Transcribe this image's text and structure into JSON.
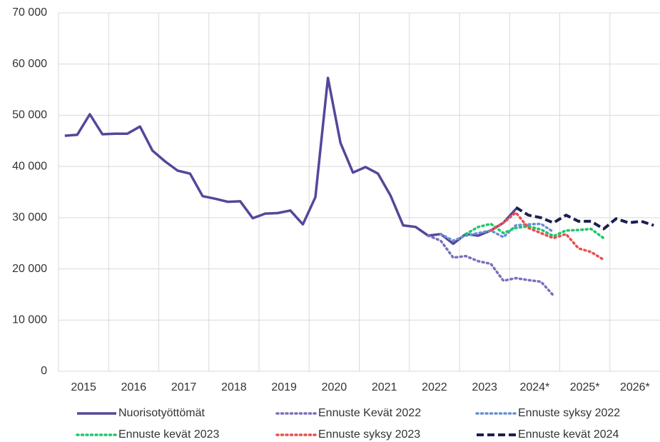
{
  "chart_data": {
    "type": "line",
    "categories": [
      null,
      "2015",
      null,
      null,
      null,
      "2016",
      null,
      null,
      null,
      "2017",
      null,
      null,
      null,
      "2018",
      null,
      null,
      null,
      "2019",
      null,
      null,
      null,
      "2020",
      null,
      null,
      null,
      "2021",
      null,
      null,
      null,
      "2022",
      null,
      null,
      null,
      "2023",
      null,
      null,
      null,
      "2024*",
      null,
      null,
      null,
      "2025*",
      null,
      null,
      null,
      "2026*",
      null,
      null
    ],
    "series": [
      {
        "name": "Nuorisotyöttömät",
        "color": "#54479a",
        "style": "solid",
        "values": [
          46000,
          46200,
          50200,
          46300,
          46400,
          46400,
          47800,
          43100,
          41000,
          39200,
          38600,
          34200,
          33700,
          33100,
          33200,
          29900,
          30800,
          30900,
          31400,
          28700,
          34000,
          57300,
          44600,
          38800,
          39900,
          38600,
          34300,
          28500,
          28200,
          26500,
          26800,
          24900,
          26800,
          26500,
          27500,
          29000,
          31700,
          null,
          null,
          null,
          null,
          null,
          null,
          null,
          null,
          null,
          null,
          null
        ]
      },
      {
        "name": "Ennuste Kevät 2022",
        "color": "#7a6fc0",
        "style": "dotted",
        "values": [
          null,
          null,
          null,
          null,
          null,
          null,
          null,
          null,
          null,
          null,
          null,
          null,
          null,
          null,
          null,
          null,
          null,
          null,
          null,
          null,
          null,
          null,
          null,
          null,
          null,
          null,
          null,
          null,
          null,
          26500,
          25500,
          22200,
          22500,
          21500,
          21000,
          17700,
          18200,
          17800,
          17500,
          14800,
          null,
          null,
          null,
          null,
          null,
          null,
          null,
          null
        ]
      },
      {
        "name": "Ennuste syksy 2022",
        "color": "#6b8fd4",
        "style": "dotted",
        "values": [
          null,
          null,
          null,
          null,
          null,
          null,
          null,
          null,
          null,
          null,
          null,
          null,
          null,
          null,
          null,
          null,
          null,
          null,
          null,
          null,
          null,
          null,
          null,
          null,
          null,
          null,
          null,
          null,
          null,
          null,
          26800,
          25500,
          26500,
          27000,
          27500,
          26200,
          28500,
          28700,
          28800,
          27200,
          null,
          null,
          null,
          null,
          null,
          null,
          null,
          null
        ]
      },
      {
        "name": "Ennuste kevät 2023",
        "color": "#1ec76a",
        "style": "dotted",
        "values": [
          null,
          null,
          null,
          null,
          null,
          null,
          null,
          null,
          null,
          null,
          null,
          null,
          null,
          null,
          null,
          null,
          null,
          null,
          null,
          null,
          null,
          null,
          null,
          null,
          null,
          null,
          null,
          null,
          null,
          null,
          null,
          null,
          26800,
          28200,
          28800,
          27000,
          28000,
          28300,
          27700,
          26400,
          27500,
          27600,
          27800,
          26000,
          null,
          null,
          null,
          null
        ]
      },
      {
        "name": "Ennuste syksy 2023",
        "color": "#e8504f",
        "style": "dotted",
        "values": [
          null,
          null,
          null,
          null,
          null,
          null,
          null,
          null,
          null,
          null,
          null,
          null,
          null,
          null,
          null,
          null,
          null,
          null,
          null,
          null,
          null,
          null,
          null,
          null,
          null,
          null,
          null,
          null,
          null,
          null,
          null,
          null,
          null,
          null,
          27500,
          29000,
          31000,
          28000,
          27000,
          26000,
          26800,
          24000,
          23300,
          21800,
          null,
          null,
          null,
          null
        ]
      },
      {
        "name": "Ennuste kevät 2024",
        "color": "#1c1f4f",
        "style": "dashed",
        "values": [
          null,
          null,
          null,
          null,
          null,
          null,
          null,
          null,
          null,
          null,
          null,
          null,
          null,
          null,
          null,
          null,
          null,
          null,
          null,
          null,
          null,
          null,
          null,
          null,
          null,
          null,
          null,
          null,
          null,
          null,
          null,
          null,
          null,
          null,
          null,
          null,
          32000,
          30500,
          30000,
          29000,
          30500,
          29300,
          29300,
          27800,
          29800,
          29000,
          29300,
          28500
        ]
      }
    ],
    "ylim": [
      0,
      70000
    ],
    "yticks": [
      0,
      {
        "value": 10000,
        "label": "10 000"
      },
      {
        "value": 20000,
        "label": "20 000"
      },
      {
        "value": 30000,
        "label": "30 000"
      },
      {
        "value": 40000,
        "label": "40 000"
      },
      {
        "value": 50000,
        "label": "50 000"
      },
      {
        "value": 60000,
        "label": "60 000"
      },
      {
        "value": 70000,
        "label": "70 000"
      }
    ],
    "grid": true
  }
}
